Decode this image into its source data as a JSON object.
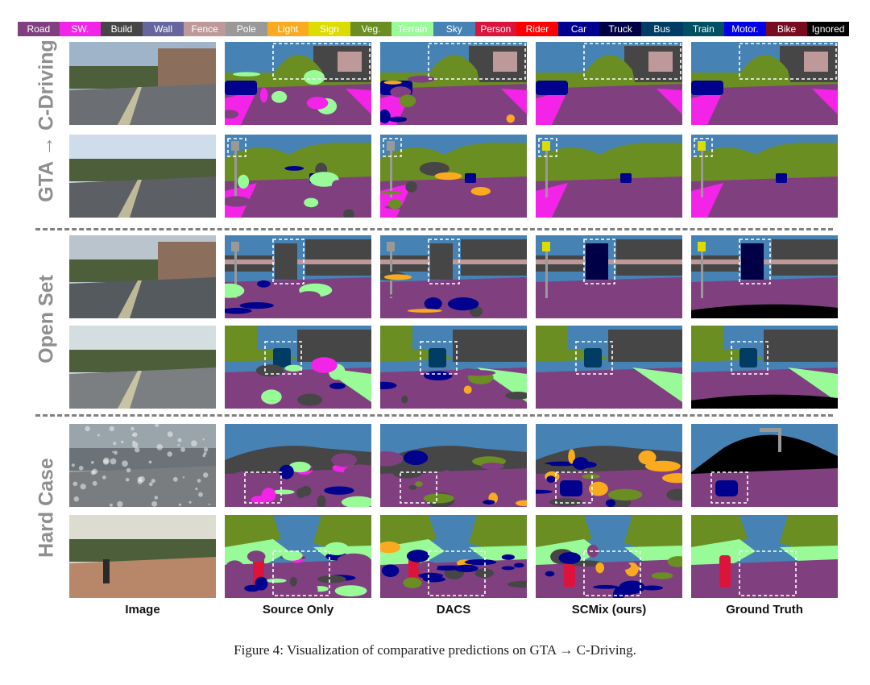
{
  "legend": [
    {
      "label": "Road",
      "color": "#804080"
    },
    {
      "label": "SW.",
      "color": "#f423e8"
    },
    {
      "label": "Build",
      "color": "#464646"
    },
    {
      "label": "Wall",
      "color": "#66669c"
    },
    {
      "label": "Fence",
      "color": "#be9999"
    },
    {
      "label": "Pole",
      "color": "#999999"
    },
    {
      "label": "Light",
      "color": "#faaa1e"
    },
    {
      "label": "Sign",
      "color": "#dcdc00"
    },
    {
      "label": "Veg.",
      "color": "#6b8e23"
    },
    {
      "label": "Terrain",
      "color": "#98fb98"
    },
    {
      "label": "Sky",
      "color": "#4682b4"
    },
    {
      "label": "Person",
      "color": "#dc143c"
    },
    {
      "label": "Rider",
      "color": "#ff0000"
    },
    {
      "label": "Car",
      "color": "#00008e"
    },
    {
      "label": "Truck",
      "color": "#000046"
    },
    {
      "label": "Bus",
      "color": "#003c64"
    },
    {
      "label": "Train",
      "color": "#005064"
    },
    {
      "label": "Motor.",
      "color": "#0000e6"
    },
    {
      "label": "Bike",
      "color": "#770b20"
    },
    {
      "label": "Ignored",
      "color": "#000000"
    }
  ],
  "row_groups": [
    "GTA → C-Driving",
    "Open Set",
    "Hard Case"
  ],
  "columns": [
    "Image",
    "Source Only",
    "DACS",
    "SCMix (ours)",
    "Ground Truth"
  ],
  "caption": "Figure 4: Visualization of comparative predictions on GTA → C-Driving."
}
